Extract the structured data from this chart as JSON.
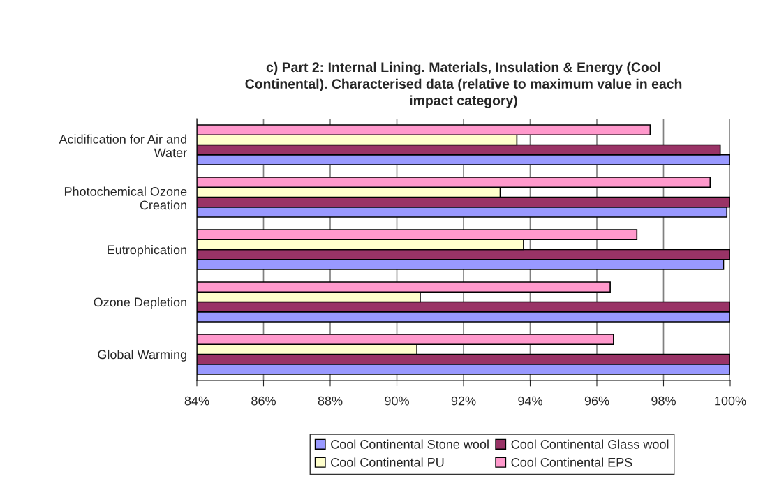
{
  "chart_data": {
    "type": "bar",
    "orientation": "horizontal",
    "title": "c) Part 2: Internal Lining. Materials, Insulation & Energy (Cool\nContinental). Characterised data (relative to maximum value in each\nimpact category)",
    "categories": [
      "Acidification for Air and\nWater",
      "Photochemical Ozone\nCreation",
      "Eutrophication",
      "Ozone Depletion",
      "Global Warming"
    ],
    "series": [
      {
        "name": "Cool Continental Stone wool",
        "color": "#9999ff",
        "values": [
          100,
          99.9,
          99.8,
          100,
          100
        ]
      },
      {
        "name": "Cool Continental Glass wool",
        "color": "#993366",
        "values": [
          99.7,
          100,
          100,
          100,
          100
        ]
      },
      {
        "name": "Cool Continental PU",
        "color": "#ffffcc",
        "values": [
          93.6,
          93.1,
          93.8,
          90.7,
          90.6
        ]
      },
      {
        "name": "Cool Continental EPS",
        "color": "#ff99cc",
        "values": [
          97.6,
          99.4,
          97.2,
          96.4,
          96.5
        ]
      }
    ],
    "xlim": [
      84,
      100
    ],
    "xticks": [
      {
        "value": 84,
        "label": "84%"
      },
      {
        "value": 86,
        "label": "86%"
      },
      {
        "value": 88,
        "label": "88%"
      },
      {
        "value": 90,
        "label": "90%"
      },
      {
        "value": 92,
        "label": "92%"
      },
      {
        "value": 94,
        "label": "94%"
      },
      {
        "value": 96,
        "label": "96%"
      },
      {
        "value": 98,
        "label": "98%"
      },
      {
        "value": 100,
        "label": "100%"
      }
    ],
    "grid": "x",
    "legend": "bottom"
  }
}
